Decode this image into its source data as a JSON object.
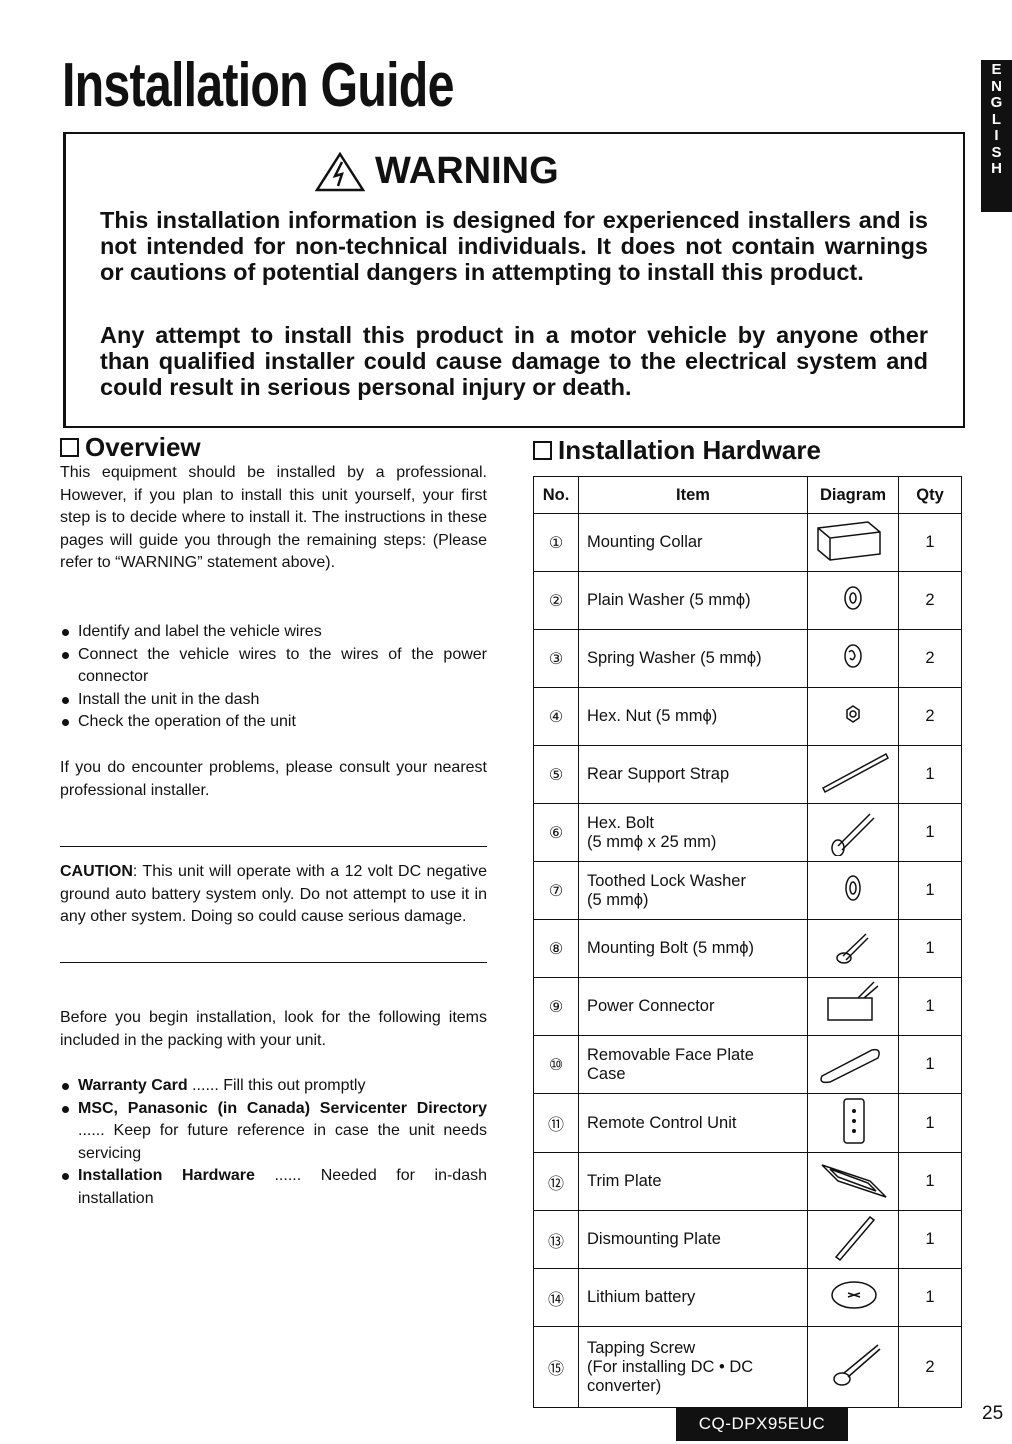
{
  "title": "Installation Guide",
  "language_tab": [
    "E",
    "N",
    "G",
    "L",
    "I",
    "S",
    "H"
  ],
  "warning": {
    "heading": "WARNING",
    "p1": "This installation information is designed for experienced installers and is not intended for non-technical individuals. It does not contain warnings or cautions of potential dangers in attempting to install this product.",
    "p2": "Any attempt to install this product in a motor vehicle by anyone other than qualified installer could cause damage to the electrical system and could result in serious personal injury or death."
  },
  "overview": {
    "heading": "Overview",
    "intro": "This equipment should be installed by a professional. However, if you plan to install this unit yourself, your first step is to decide where to install it. The instructions in these pages will guide you through the remaining steps: (Please refer to “WARNING” statement above).",
    "steps": [
      "Identify and label the vehicle wires",
      "Connect the vehicle wires to the wires of the power connector",
      "Install the unit in the dash",
      "Check the operation of the unit"
    ],
    "problems": "If you do encounter problems, please consult your nearest professional installer.",
    "caution_label": "CAUTION",
    "caution": ": This unit will operate with a 12 volt DC negative ground auto battery system only. Do not attempt to use it in any other system. Doing so could cause serious damage.",
    "before": "Before you begin installation, look for the following items included in the packing with your unit.",
    "packing": [
      {
        "bold": "Warranty Card",
        "text": " ...... Fill this out promptly"
      },
      {
        "bold": "MSC, Panasonic (in Canada) Servicenter Directory",
        "text": " ...... Keep for future reference in case the unit needs servicing"
      },
      {
        "bold": "Installation Hardware",
        "text": " ...... Needed for in-dash installation"
      }
    ]
  },
  "hardware": {
    "heading": "Installation Hardware",
    "columns": [
      "No.",
      "Item",
      "Diagram",
      "Qty"
    ],
    "rows": [
      {
        "no": "①",
        "item": "Mounting Collar",
        "qty": "1",
        "icon": "mounting-collar-icon"
      },
      {
        "no": "②",
        "item": "Plain Washer (5 mmϕ)",
        "qty": "2",
        "icon": "plain-washer-icon"
      },
      {
        "no": "③",
        "item": "Spring Washer (5 mmϕ)",
        "qty": "2",
        "icon": "spring-washer-icon"
      },
      {
        "no": "④",
        "item": "Hex. Nut (5 mmϕ)",
        "qty": "2",
        "icon": "hex-nut-icon"
      },
      {
        "no": "⑤",
        "item": "Rear Support Strap",
        "qty": "1",
        "icon": "support-strap-icon"
      },
      {
        "no": "⑥",
        "item": "Hex. Bolt\n(5 mmϕ x 25 mm)",
        "qty": "1",
        "icon": "hex-bolt-icon"
      },
      {
        "no": "⑦",
        "item": "Toothed Lock Washer\n(5 mmϕ)",
        "qty": "1",
        "icon": "lock-washer-icon"
      },
      {
        "no": "⑧",
        "item": "Mounting Bolt (5 mmϕ)",
        "qty": "1",
        "icon": "mounting-bolt-icon"
      },
      {
        "no": "⑨",
        "item": "Power Connector",
        "qty": "1",
        "icon": "power-connector-icon"
      },
      {
        "no": "⑩",
        "item": "Removable Face Plate\nCase",
        "qty": "1",
        "icon": "face-plate-case-icon"
      },
      {
        "no": "⑪",
        "item": "Remote Control Unit",
        "qty": "1",
        "icon": "remote-control-icon"
      },
      {
        "no": "⑫",
        "item": "Trim Plate",
        "qty": "1",
        "icon": "trim-plate-icon"
      },
      {
        "no": "⑬",
        "item": "Dismounting Plate",
        "qty": "1",
        "icon": "dismounting-plate-icon"
      },
      {
        "no": "⑭",
        "item": "Lithium battery",
        "qty": "1",
        "icon": "battery-icon"
      },
      {
        "no": "⑮",
        "item": "Tapping Screw\n(For installing DC • DC\nconverter)",
        "qty": "2",
        "icon": "tapping-screw-icon"
      }
    ]
  },
  "footer": {
    "model": "CQ-DPX95EUC",
    "page": "25"
  }
}
